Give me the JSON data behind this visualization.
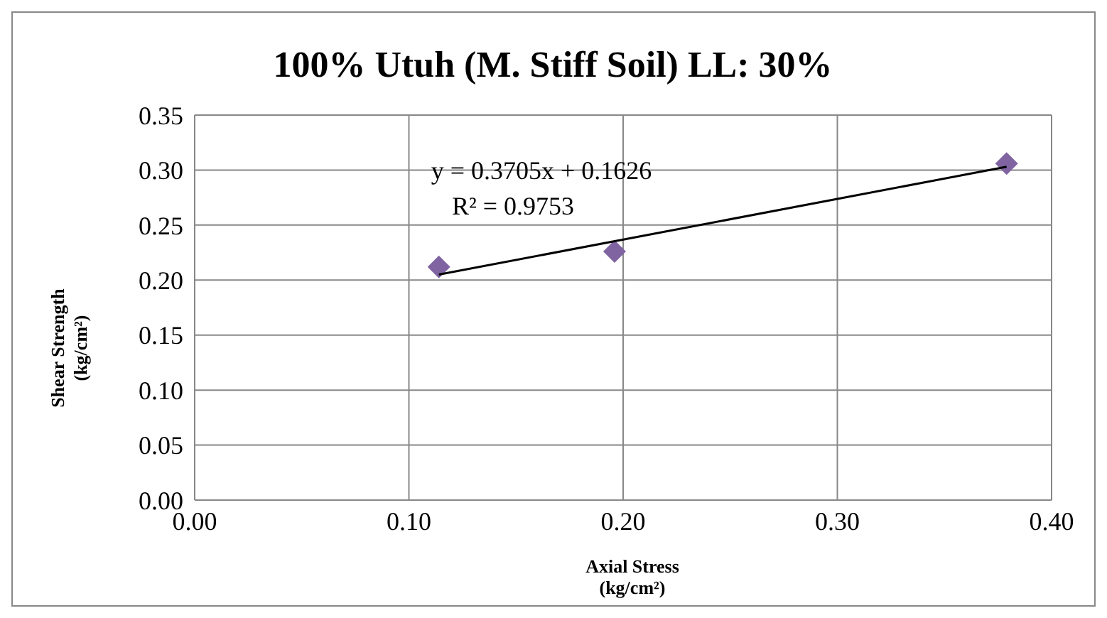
{
  "chart_data": {
    "type": "scatter",
    "title": "100% Utuh (M. Stiff Soil) LL: 30%",
    "xlabel": "Axial Stress (kg/cm²)",
    "ylabel": "Shear Strength (kg/cm²)",
    "xlim": [
      0,
      0.4
    ],
    "xticks": [
      {
        "value": 0,
        "label": "0.00"
      },
      {
        "value": 0.1,
        "label": "0.10"
      },
      {
        "value": 0.2,
        "label": "0.20"
      },
      {
        "value": 0.3,
        "label": "0.30"
      },
      {
        "value": 0.4,
        "label": "0.40"
      }
    ],
    "ylim": [
      0,
      0.35
    ],
    "yticks": [
      {
        "value": 0,
        "label": "0.00"
      },
      {
        "value": 0.05,
        "label": "0.05"
      },
      {
        "value": 0.1,
        "label": "0.10"
      },
      {
        "value": 0.15,
        "label": "0.15"
      },
      {
        "value": 0.2,
        "label": "0.20"
      },
      {
        "value": 0.25,
        "label": "0.25"
      },
      {
        "value": 0.3,
        "label": "0.30"
      },
      {
        "value": 0.35,
        "label": "0.35"
      }
    ],
    "grid": true,
    "marker": "diamond",
    "series": [
      {
        "color": "#8064a2",
        "x": [
          0.114,
          0.196,
          0.379
        ],
        "values": [
          0.212,
          0.226,
          0.306
        ]
      },
      {
        "type": "line",
        "color": "#000000",
        "marker": "none",
        "x": [
          0.114,
          0.379
        ],
        "values": [
          0.205,
          0.303
        ]
      }
    ],
    "annotations": [
      "y = 0.3705x + 0.1626",
      "R² = 0.9753"
    ]
  }
}
